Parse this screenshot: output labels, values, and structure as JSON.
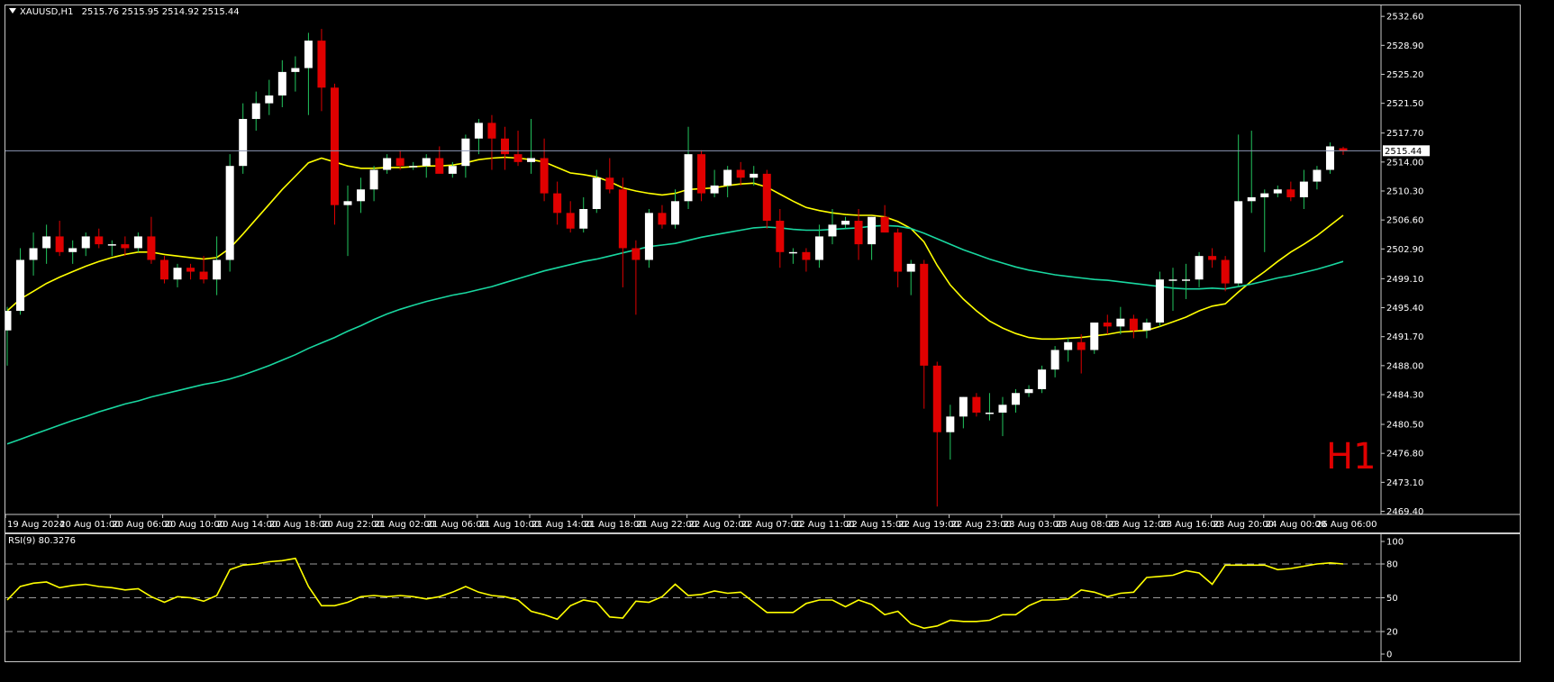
{
  "header": {
    "menu_icon": "triangle-down-icon",
    "symbol": "XAUUSD,H1",
    "ohlc": "2515.76 2515.95 2514.92 2515.44"
  },
  "timeframe_tag": "H1",
  "rsi_header": "RSI(9) 80.3276",
  "colors": {
    "up": "#ffffff",
    "down": "#e00000",
    "ma_fast": "#ffff00",
    "ma_slow": "#19d7a0",
    "rsi": "#ffff00",
    "price_line": "#8c96b4"
  },
  "chart_data": [
    {
      "type": "candlestick",
      "symbol": "XAUUSD",
      "timeframe": "H1",
      "price_axis_ticks": [
        "2532.60",
        "2528.90",
        "2525.20",
        "2521.50",
        "2517.70",
        "2514.00",
        "2510.30",
        "2506.60",
        "2502.90",
        "2499.10",
        "2495.40",
        "2491.70",
        "2488.00",
        "2484.30",
        "2480.50",
        "2476.80",
        "2473.10",
        "2469.40"
      ],
      "current_price_label": "2515.44",
      "ylim": [
        2469.0,
        2534.0
      ],
      "time_axis_labels": [
        "19 Aug 2024",
        "20 Aug 01:00",
        "20 Aug 06:00",
        "20 Aug 10:00",
        "20 Aug 14:00",
        "20 Aug 18:00",
        "20 Aug 22:00",
        "21 Aug 02:00",
        "21 Aug 06:00",
        "21 Aug 10:00",
        "21 Aug 14:00",
        "21 Aug 18:00",
        "21 Aug 22:00",
        "22 Aug 02:00",
        "22 Aug 07:00",
        "22 Aug 11:00",
        "22 Aug 15:00",
        "22 Aug 19:00",
        "22 Aug 23:00",
        "23 Aug 03:00",
        "23 Aug 08:00",
        "23 Aug 12:00",
        "23 Aug 16:00",
        "23 Aug 20:00",
        "24 Aug 00:00",
        "26 Aug 06:00"
      ],
      "candles": [
        [
          2492.5,
          2495.5,
          2488.0,
          2495.0
        ],
        [
          2495.0,
          2503.0,
          2494.5,
          2501.5
        ],
        [
          2501.5,
          2505.0,
          2499.5,
          2503.0
        ],
        [
          2503.0,
          2506.0,
          2501.0,
          2504.5
        ],
        [
          2504.5,
          2506.5,
          2502.0,
          2502.5
        ],
        [
          2502.5,
          2504.0,
          2501.0,
          2503.0
        ],
        [
          2503.0,
          2505.0,
          2502.0,
          2504.5
        ],
        [
          2504.5,
          2505.5,
          2503.0,
          2503.5
        ],
        [
          2503.5,
          2504.0,
          2502.0,
          2503.5
        ],
        [
          2503.5,
          2504.5,
          2502.0,
          2503.0
        ],
        [
          2503.0,
          2505.0,
          2502.5,
          2504.5
        ],
        [
          2504.5,
          2507.0,
          2501.0,
          2501.5
        ],
        [
          2501.5,
          2502.0,
          2498.5,
          2499.0
        ],
        [
          2499.0,
          2501.0,
          2498.0,
          2500.5
        ],
        [
          2500.5,
          2501.0,
          2499.0,
          2500.0
        ],
        [
          2500.0,
          2502.0,
          2498.5,
          2499.0
        ],
        [
          2499.0,
          2504.5,
          2497.0,
          2501.5
        ],
        [
          2501.5,
          2515.0,
          2500.0,
          2513.5
        ],
        [
          2513.5,
          2521.5,
          2512.5,
          2519.5
        ],
        [
          2519.5,
          2523.0,
          2518.0,
          2521.5
        ],
        [
          2521.5,
          2524.5,
          2520.0,
          2522.5
        ],
        [
          2522.5,
          2527.0,
          2521.0,
          2525.5
        ],
        [
          2525.5,
          2527.5,
          2523.0,
          2526.0
        ],
        [
          2526.0,
          2530.5,
          2520.0,
          2529.5
        ],
        [
          2529.5,
          2531.0,
          2520.5,
          2523.5
        ],
        [
          2523.5,
          2524.0,
          2506.0,
          2508.5
        ],
        [
          2508.5,
          2511.0,
          2502.0,
          2509.0
        ],
        [
          2509.0,
          2512.0,
          2507.5,
          2510.5
        ],
        [
          2510.5,
          2513.5,
          2509.0,
          2513.0
        ],
        [
          2513.0,
          2515.0,
          2512.5,
          2514.5
        ],
        [
          2514.5,
          2515.5,
          2513.0,
          2513.5
        ],
        [
          2513.5,
          2514.0,
          2513.0,
          2513.5
        ],
        [
          2513.5,
          2515.0,
          2512.0,
          2514.5
        ],
        [
          2514.5,
          2516.0,
          2513.0,
          2512.5
        ],
        [
          2512.5,
          2514.0,
          2512.0,
          2513.5
        ],
        [
          2513.5,
          2517.5,
          2512.0,
          2517.0
        ],
        [
          2517.0,
          2519.5,
          2515.0,
          2519.0
        ],
        [
          2519.0,
          2520.0,
          2513.0,
          2517.0
        ],
        [
          2517.0,
          2518.5,
          2513.0,
          2515.0
        ],
        [
          2515.0,
          2518.0,
          2513.5,
          2514.0
        ],
        [
          2514.0,
          2519.5,
          2512.5,
          2514.5
        ],
        [
          2514.5,
          2517.0,
          2509.0,
          2510.0
        ],
        [
          2510.0,
          2511.5,
          2506.0,
          2507.5
        ],
        [
          2507.5,
          2509.0,
          2505.0,
          2505.5
        ],
        [
          2505.5,
          2509.5,
          2505.0,
          2508.0
        ],
        [
          2508.0,
          2513.0,
          2507.5,
          2512.0
        ],
        [
          2512.0,
          2514.5,
          2510.0,
          2510.5
        ],
        [
          2510.5,
          2512.0,
          2498.0,
          2503.0
        ],
        [
          2503.0,
          2504.0,
          2494.5,
          2501.5
        ],
        [
          2501.5,
          2508.0,
          2500.5,
          2507.5
        ],
        [
          2507.5,
          2508.5,
          2505.5,
          2506.0
        ],
        [
          2506.0,
          2510.5,
          2505.5,
          2509.0
        ],
        [
          2509.0,
          2518.5,
          2508.0,
          2515.0
        ],
        [
          2515.0,
          2515.5,
          2509.0,
          2510.0
        ],
        [
          2510.0,
          2513.0,
          2509.5,
          2511.0
        ],
        [
          2511.0,
          2513.5,
          2509.5,
          2513.0
        ],
        [
          2513.0,
          2514.0,
          2511.0,
          2512.0
        ],
        [
          2512.0,
          2513.5,
          2511.0,
          2512.5
        ],
        [
          2512.5,
          2513.0,
          2505.5,
          2506.5
        ],
        [
          2506.5,
          2508.0,
          2500.5,
          2502.5
        ],
        [
          2502.5,
          2503.0,
          2501.0,
          2502.5
        ],
        [
          2502.5,
          2503.0,
          2500.0,
          2501.5
        ],
        [
          2501.5,
          2506.0,
          2500.5,
          2504.5
        ],
        [
          2504.5,
          2508.0,
          2503.5,
          2506.0
        ],
        [
          2506.0,
          2507.0,
          2505.5,
          2506.5
        ],
        [
          2506.5,
          2508.0,
          2501.5,
          2503.5
        ],
        [
          2503.5,
          2507.0,
          2501.5,
          2507.0
        ],
        [
          2507.0,
          2508.5,
          2505.0,
          2505.0
        ],
        [
          2505.0,
          2505.5,
          2498.0,
          2500.0
        ],
        [
          2500.0,
          2501.5,
          2497.0,
          2501.0
        ],
        [
          2501.0,
          2501.5,
          2482.5,
          2488.0
        ],
        [
          2488.0,
          2488.5,
          2470.0,
          2479.5
        ],
        [
          2479.5,
          2483.0,
          2476.0,
          2481.5
        ],
        [
          2481.5,
          2484.0,
          2480.0,
          2484.0
        ],
        [
          2484.0,
          2484.5,
          2481.5,
          2482.0
        ],
        [
          2482.0,
          2484.5,
          2481.0,
          2482.0
        ],
        [
          2482.0,
          2484.0,
          2479.0,
          2483.0
        ],
        [
          2483.0,
          2485.0,
          2482.0,
          2484.5
        ],
        [
          2484.5,
          2485.5,
          2484.0,
          2485.0
        ],
        [
          2485.0,
          2488.0,
          2484.5,
          2487.5
        ],
        [
          2487.5,
          2490.5,
          2486.5,
          2490.0
        ],
        [
          2490.0,
          2491.5,
          2488.5,
          2491.0
        ],
        [
          2491.0,
          2492.0,
          2487.0,
          2490.0
        ],
        [
          2490.0,
          2493.5,
          2489.5,
          2493.5
        ],
        [
          2493.5,
          2494.5,
          2492.0,
          2493.0
        ],
        [
          2493.0,
          2495.5,
          2492.0,
          2494.0
        ],
        [
          2494.0,
          2494.5,
          2491.5,
          2492.5
        ],
        [
          2492.5,
          2494.0,
          2491.5,
          2493.5
        ],
        [
          2493.5,
          2500.0,
          2493.0,
          2499.0
        ],
        [
          2499.0,
          2500.5,
          2495.0,
          2499.0
        ],
        [
          2499.0,
          2501.0,
          2496.5,
          2499.0
        ],
        [
          2499.0,
          2502.5,
          2498.0,
          2502.0
        ],
        [
          2502.0,
          2503.0,
          2500.5,
          2501.5
        ],
        [
          2501.5,
          2502.0,
          2497.5,
          2498.5
        ],
        [
          2498.5,
          2517.5,
          2498.0,
          2509.0
        ],
        [
          2509.0,
          2518.0,
          2507.5,
          2509.5
        ],
        [
          2509.5,
          2510.5,
          2502.5,
          2510.0
        ],
        [
          2510.0,
          2511.0,
          2509.5,
          2510.5
        ],
        [
          2510.5,
          2511.5,
          2509.0,
          2509.5
        ],
        [
          2509.5,
          2513.0,
          2508.0,
          2511.5
        ],
        [
          2511.5,
          2513.5,
          2510.5,
          2513.0
        ],
        [
          2513.0,
          2516.5,
          2512.5,
          2516.0
        ],
        [
          2515.76,
          2515.95,
          2514.92,
          2515.44
        ]
      ],
      "indicators": [
        {
          "type": "moving-average",
          "color": "#ffff00",
          "values": [
            2495.0,
            2496.5,
            2497.5,
            2498.5,
            2499.3,
            2500.0,
            2500.7,
            2501.3,
            2501.8,
            2502.2,
            2502.5,
            2502.5,
            2502.2,
            2502.0,
            2501.8,
            2501.6,
            2501.8,
            2503.0,
            2504.8,
            2506.7,
            2508.6,
            2510.5,
            2512.2,
            2513.9,
            2514.5,
            2514.0,
            2513.5,
            2513.2,
            2513.2,
            2513.3,
            2513.3,
            2513.4,
            2513.5,
            2513.5,
            2513.6,
            2513.9,
            2514.3,
            2514.5,
            2514.6,
            2514.5,
            2514.3,
            2514.0,
            2513.3,
            2512.6,
            2512.4,
            2512.1,
            2511.5,
            2510.7,
            2510.3,
            2510.0,
            2509.8,
            2510.0,
            2510.5,
            2510.6,
            2510.7,
            2511.0,
            2511.2,
            2511.3,
            2510.8,
            2509.9,
            2509.0,
            2508.2,
            2507.8,
            2507.5,
            2507.3,
            2507.2,
            2507.2,
            2507.0,
            2506.4,
            2505.5,
            2503.8,
            2500.8,
            2498.3,
            2496.5,
            2495.0,
            2493.7,
            2492.8,
            2492.1,
            2491.6,
            2491.4,
            2491.4,
            2491.5,
            2491.6,
            2491.8,
            2492.0,
            2492.3,
            2492.4,
            2492.5,
            2493.0,
            2493.6,
            2494.2,
            2495.0,
            2495.6,
            2495.9,
            2497.4,
            2498.8,
            2500.0,
            2501.3,
            2502.5,
            2503.5,
            2504.6,
            2505.9,
            2507.2
          ]
        },
        {
          "type": "moving-average",
          "color": "#19d7a0",
          "values": [
            2478.0,
            2478.6,
            2479.2,
            2479.8,
            2480.4,
            2481.0,
            2481.5,
            2482.1,
            2482.6,
            2483.1,
            2483.5,
            2484.0,
            2484.4,
            2484.8,
            2485.2,
            2485.6,
            2485.9,
            2486.3,
            2486.8,
            2487.4,
            2488.0,
            2488.7,
            2489.4,
            2490.2,
            2490.9,
            2491.6,
            2492.4,
            2493.1,
            2493.9,
            2494.6,
            2495.2,
            2495.7,
            2496.2,
            2496.6,
            2497.0,
            2497.3,
            2497.7,
            2498.1,
            2498.6,
            2499.1,
            2499.6,
            2500.1,
            2500.5,
            2500.9,
            2501.3,
            2501.6,
            2502.0,
            2502.4,
            2502.8,
            2503.2,
            2503.4,
            2503.6,
            2504.0,
            2504.4,
            2504.7,
            2505.0,
            2505.3,
            2505.6,
            2505.7,
            2505.6,
            2505.4,
            2505.3,
            2505.3,
            2505.4,
            2505.5,
            2505.6,
            2505.8,
            2505.9,
            2505.8,
            2505.5,
            2504.9,
            2504.2,
            2503.5,
            2502.8,
            2502.2,
            2501.6,
            2501.1,
            2500.6,
            2500.2,
            2499.9,
            2499.6,
            2499.4,
            2499.2,
            2499.0,
            2498.9,
            2498.7,
            2498.5,
            2498.3,
            2498.1,
            2497.9,
            2497.8,
            2497.8,
            2497.9,
            2497.8,
            2498.1,
            2498.4,
            2498.8,
            2499.2,
            2499.5,
            2499.9,
            2500.3,
            2500.8,
            2501.3
          ]
        }
      ]
    },
    {
      "type": "line",
      "title": "RSI(9) 80.3276",
      "ylim": [
        0,
        100
      ],
      "ticks": [
        "100",
        "80",
        "50",
        "20",
        "0"
      ],
      "levels": [
        80,
        50,
        20
      ],
      "values": [
        48,
        60,
        63,
        64,
        59,
        61,
        62,
        60,
        59,
        57,
        58,
        51,
        46,
        51,
        50,
        47,
        52,
        75,
        79,
        80,
        82,
        83,
        85,
        60,
        43,
        43,
        46,
        51,
        52,
        51,
        52,
        51,
        49,
        51,
        55,
        60,
        55,
        52,
        51,
        48,
        38,
        35,
        31,
        43,
        48,
        46,
        33,
        32,
        47,
        46,
        51,
        62,
        52,
        53,
        56,
        54,
        55,
        46,
        37,
        37,
        37,
        45,
        48,
        48,
        42,
        48,
        44,
        35,
        38,
        27,
        23,
        25,
        30,
        29,
        29,
        30,
        35,
        35,
        43,
        48,
        48,
        49,
        57,
        55,
        51,
        54,
        55,
        68,
        69,
        70,
        74,
        72,
        62,
        79,
        79,
        79,
        79,
        75,
        76,
        78,
        80,
        81,
        80
      ]
    }
  ]
}
